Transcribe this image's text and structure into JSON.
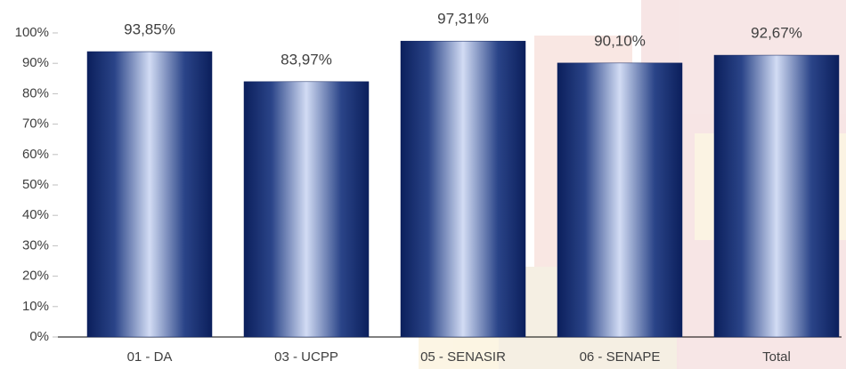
{
  "chart_data": {
    "type": "bar",
    "categories": [
      "01 - DA",
      "03 - UCPP",
      "05 - SENASIR",
      "06 - SENAPE",
      "Total"
    ],
    "values": [
      93.85,
      83.97,
      97.31,
      90.1,
      92.67
    ],
    "value_labels": [
      "93,85%",
      "83,97%",
      "97,31%",
      "90,10%",
      "92,67%"
    ],
    "color": "#0b1f5c",
    "ylim": [
      0,
      100
    ],
    "yticks": [
      {
        "value": 0,
        "label": "0%"
      },
      {
        "value": 10,
        "label": "10%"
      },
      {
        "value": 20,
        "label": "20%"
      },
      {
        "value": 30,
        "label": "30%"
      },
      {
        "value": 40,
        "label": "40%"
      },
      {
        "value": 50,
        "label": "50%"
      },
      {
        "value": 60,
        "label": "60%"
      },
      {
        "value": 70,
        "label": "70%"
      },
      {
        "value": 80,
        "label": "80%"
      },
      {
        "value": 90,
        "label": "90%"
      },
      {
        "value": 100,
        "label": "100%"
      }
    ],
    "grid": false
  }
}
